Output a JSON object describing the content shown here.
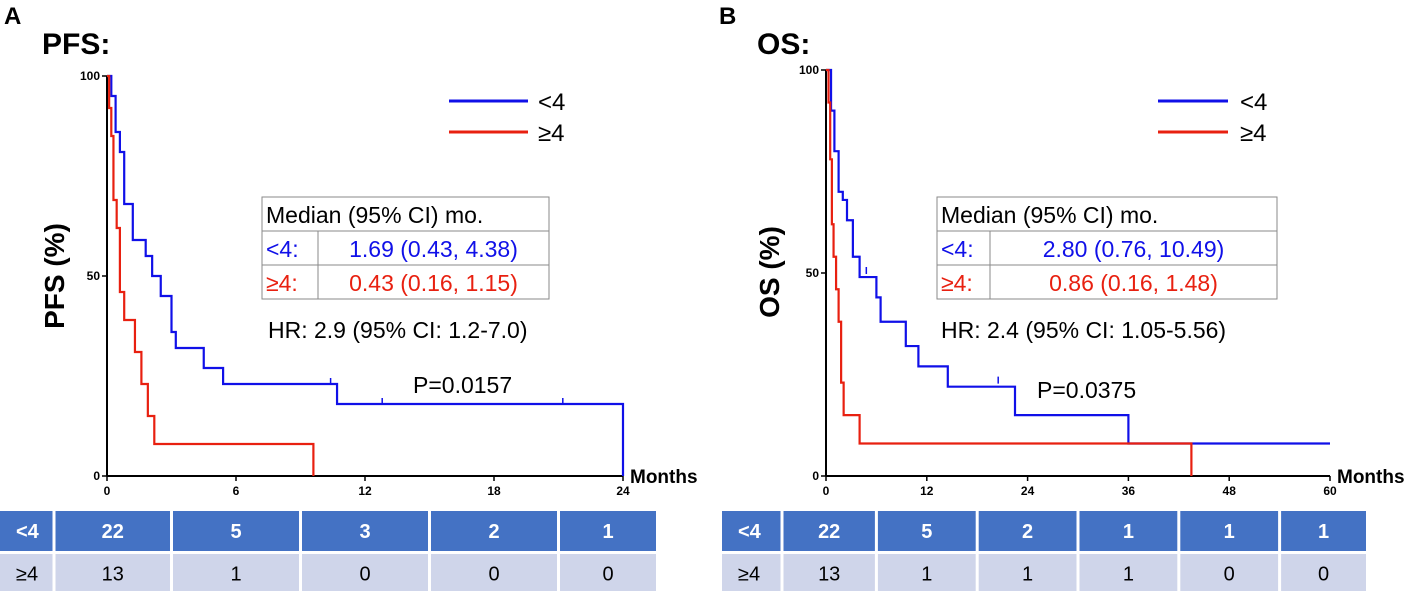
{
  "chart_data": [
    {
      "type": "line",
      "panel_label": "A",
      "title": "PFS:",
      "ylabel": "PFS (%)",
      "xlabel": "Months",
      "xlim": [
        0,
        24
      ],
      "ylim": [
        0,
        100
      ],
      "xticks": [
        0,
        6,
        12,
        18,
        24
      ],
      "yticks": [
        0,
        50,
        100
      ],
      "series": [
        {
          "name": "<4",
          "color": "#1010E8",
          "points": [
            [
              0,
              100
            ],
            [
              0.2,
              95
            ],
            [
              0.4,
              86
            ],
            [
              0.6,
              81
            ],
            [
              0.8,
              68
            ],
            [
              1.2,
              59
            ],
            [
              1.8,
              55
            ],
            [
              2.1,
              50
            ],
            [
              2.5,
              45
            ],
            [
              3.0,
              36
            ],
            [
              3.2,
              32
            ],
            [
              4.5,
              27
            ],
            [
              5.4,
              23
            ],
            [
              10.7,
              18
            ],
            [
              24,
              18
            ],
            [
              24,
              0
            ]
          ],
          "censors": [
            [
              10.4,
              23
            ],
            [
              12.8,
              18
            ],
            [
              21.2,
              18
            ]
          ]
        },
        {
          "name": "≥4",
          "color": "#E82010",
          "points": [
            [
              0,
              100
            ],
            [
              0.1,
              92
            ],
            [
              0.2,
              85
            ],
            [
              0.3,
              69
            ],
            [
              0.45,
              62
            ],
            [
              0.6,
              46
            ],
            [
              0.8,
              39
            ],
            [
              1.3,
              31
            ],
            [
              1.6,
              23
            ],
            [
              1.9,
              15
            ],
            [
              2.2,
              8
            ],
            [
              9.6,
              8
            ],
            [
              9.6,
              0
            ]
          ],
          "censors": []
        }
      ],
      "stats_table": {
        "header": "Median (95% CI) mo.",
        "rows": [
          {
            "group": "<4:",
            "value": "1.69 (0.43, 4.38)",
            "color": "#1010E8"
          },
          {
            "group": "≥4:",
            "value": "0.43 (0.16, 1.15)",
            "color": "#E82010"
          }
        ]
      },
      "hr_text": "HR: 2.9 (95% CI: 1.2-7.0)",
      "p_value": "P=0.0157",
      "risk_table": {
        "rows": [
          {
            "group": "<4",
            "counts": [
              "22",
              "5",
              "3",
              "2",
              "1"
            ]
          },
          {
            "group": "≥4",
            "counts": [
              "13",
              "1",
              "0",
              "0",
              "0"
            ]
          }
        ]
      }
    },
    {
      "type": "line",
      "panel_label": "B",
      "title": "OS:",
      "ylabel": "OS (%)",
      "xlabel": "Months",
      "xlim": [
        0,
        60
      ],
      "ylim": [
        0,
        100
      ],
      "xticks": [
        0,
        12,
        24,
        36,
        48,
        60
      ],
      "yticks": [
        0,
        50,
        100
      ],
      "series": [
        {
          "name": "<4",
          "color": "#1010E8",
          "points": [
            [
              0,
              100
            ],
            [
              0.6,
              90
            ],
            [
              1.0,
              80
            ],
            [
              1.5,
              70
            ],
            [
              2.0,
              68
            ],
            [
              2.5,
              63
            ],
            [
              3.2,
              54
            ],
            [
              4.0,
              49
            ],
            [
              6.0,
              44
            ],
            [
              6.5,
              38
            ],
            [
              9.5,
              32
            ],
            [
              11.0,
              27
            ],
            [
              14.5,
              22
            ],
            [
              22.5,
              15
            ],
            [
              36.0,
              8
            ],
            [
              60,
              8
            ]
          ],
          "censors": [
            [
              4.8,
              50
            ],
            [
              20.5,
              23
            ]
          ]
        },
        {
          "name": "≥4",
          "color": "#E82010",
          "points": [
            [
              0,
              100
            ],
            [
              0.3,
              92
            ],
            [
              0.5,
              78
            ],
            [
              0.7,
              62
            ],
            [
              0.9,
              54
            ],
            [
              1.2,
              46
            ],
            [
              1.5,
              38
            ],
            [
              1.8,
              23
            ],
            [
              2.1,
              15
            ],
            [
              4.0,
              8
            ],
            [
              43.5,
              8
            ],
            [
              43.5,
              0
            ]
          ],
          "censors": []
        }
      ],
      "stats_table": {
        "header": "Median (95% CI) mo.",
        "rows": [
          {
            "group": "<4:",
            "value": "2.80 (0.76, 10.49)",
            "color": "#1010E8"
          },
          {
            "group": "≥4:",
            "value": "0.86 (0.16, 1.48)",
            "color": "#E82010"
          }
        ]
      },
      "hr_text": "HR: 2.4 (95% CI: 1.05-5.56)",
      "p_value": "P=0.0375",
      "risk_table": {
        "rows": [
          {
            "group": "<4",
            "counts": [
              "22",
              "5",
              "2",
              "1",
              "1",
              "1"
            ]
          },
          {
            "group": "≥4",
            "counts": [
              "13",
              "1",
              "1",
              "1",
              "0",
              "0"
            ]
          }
        ]
      }
    }
  ],
  "colors": {
    "risk_header_bg": "#4472C4",
    "risk_body_bg": "#CFD5EA",
    "axis": "#000000"
  }
}
